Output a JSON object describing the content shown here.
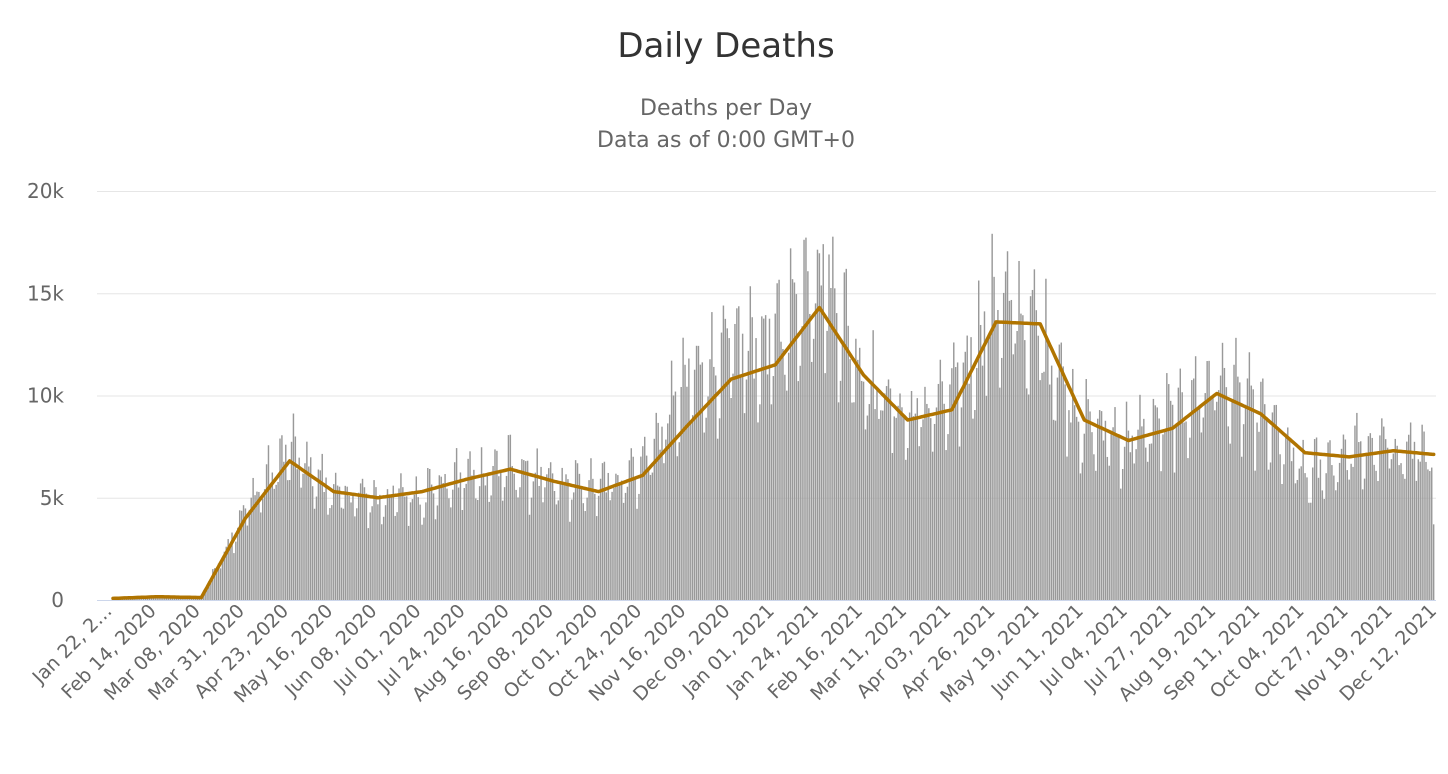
{
  "chart_data": {
    "type": "bar",
    "title": "Daily Deaths",
    "subtitle_lines": [
      "Deaths per Day",
      "Data as of 0:00 GMT+0"
    ],
    "xlabel": "",
    "ylabel": "",
    "ylim": [
      0,
      20000
    ],
    "y_ticks": [
      0,
      5000,
      10000,
      15000,
      20000
    ],
    "y_tick_labels": [
      "0",
      "5k",
      "10k",
      "15k",
      "20k"
    ],
    "x_tick_labels": [
      "Jan 22, 2…",
      "Feb 14, 2020",
      "Mar 08, 2020",
      "Mar 31, 2020",
      "Apr 23, 2020",
      "May 16, 2020",
      "Jun 08, 2020",
      "Jul 01, 2020",
      "Jul 24, 2020",
      "Aug 16, 2020",
      "Sep 08, 2020",
      "Oct 01, 2020",
      "Oct 24, 2020",
      "Nov 16, 2020",
      "Dec 09, 2020",
      "Jan 01, 2021",
      "Jan 24, 2021",
      "Feb 16, 2021",
      "Mar 11, 2021",
      "Apr 03, 2021",
      "Apr 26, 2021",
      "May 19, 2021",
      "Jun 11, 2021",
      "Jul 04, 2021",
      "Jul 27, 2021",
      "Aug 19, 2021",
      "Sep 11, 2021",
      "Oct 04, 2021",
      "Oct 27, 2021",
      "Nov 19, 2021",
      "Dec 12, 2021"
    ],
    "grid": true,
    "legend": "none",
    "series": [
      {
        "type": "bar",
        "color": "#999999",
        "values_at_ticks": [
          20,
          200,
          120,
          4500,
          7300,
          5200,
          4900,
          5200,
          6000,
          6400,
          5600,
          5500,
          6600,
          10500,
          12000,
          12500,
          16500,
          11000,
          8800,
          9800,
          14500,
          13000,
          8500,
          7800,
          9000,
          10800,
          9000,
          6000,
          7200,
          7400,
          7200
        ]
      },
      {
        "type": "line",
        "name_hidden": true,
        "color": "#b07400",
        "values_at_ticks": [
          80,
          160,
          120,
          4000,
          6800,
          5300,
          5000,
          5300,
          5900,
          6400,
          5800,
          5300,
          6100,
          8500,
          10800,
          11500,
          14300,
          11000,
          8800,
          9300,
          13600,
          13500,
          8800,
          7800,
          8400,
          10100,
          9100,
          7200,
          7000,
          7300,
          7100
        ]
      }
    ],
    "notes_last_line_value": 6100
  }
}
